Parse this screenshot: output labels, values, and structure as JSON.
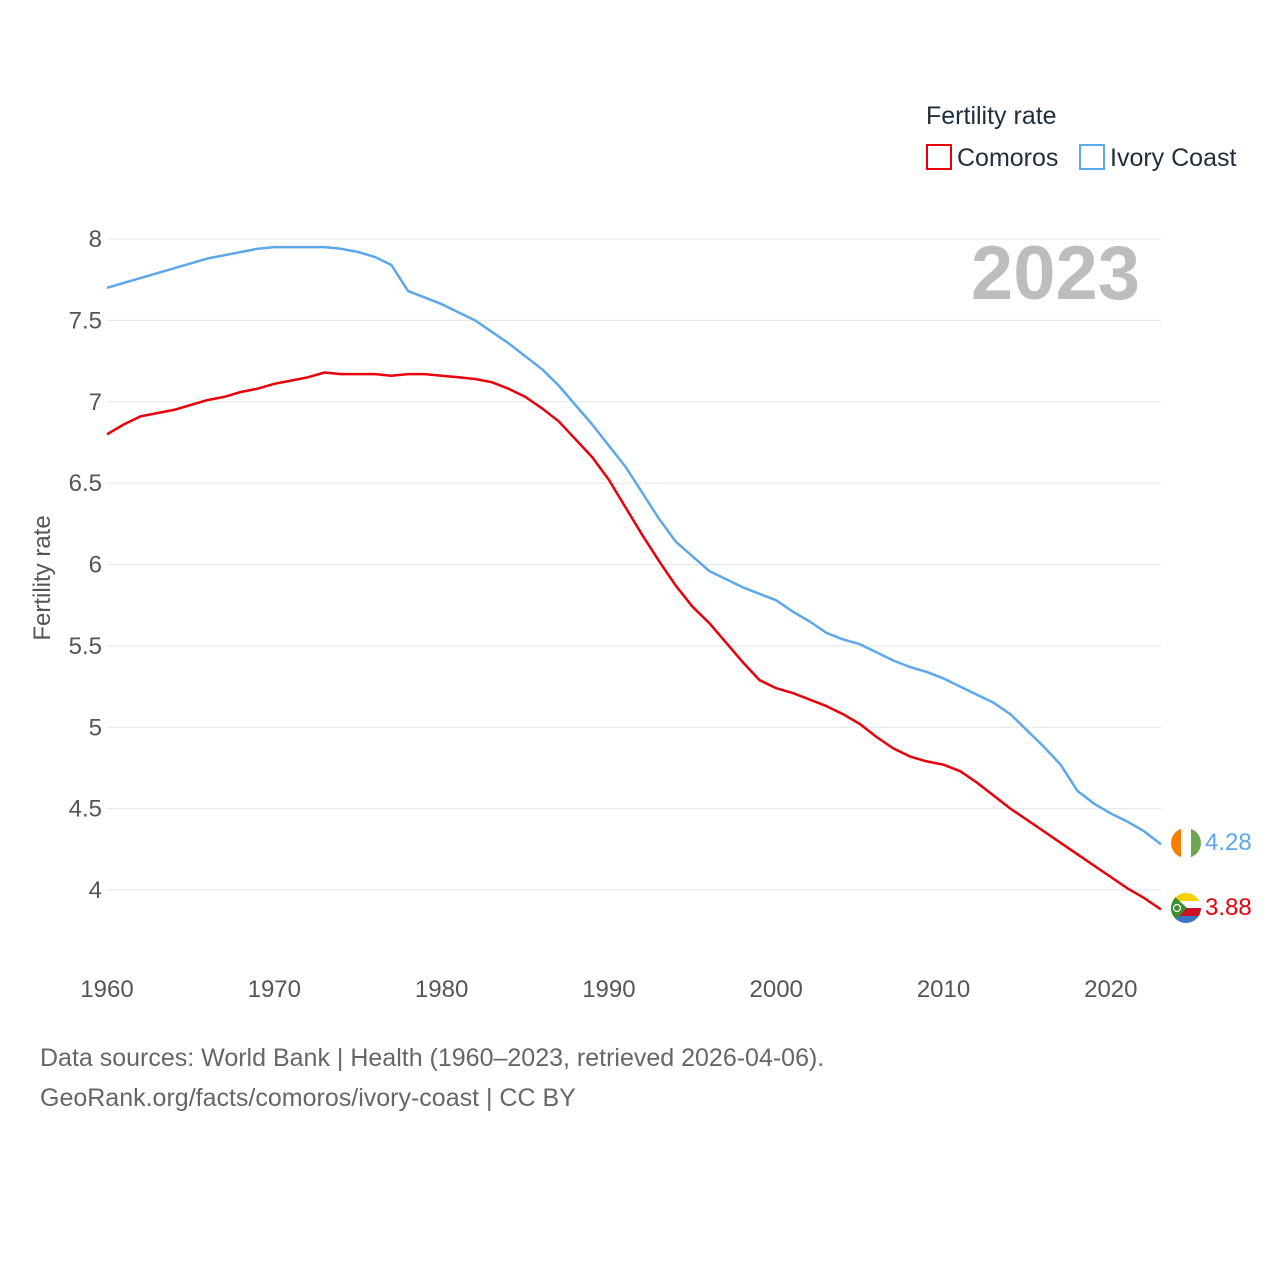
{
  "legend": {
    "title": "Fertility rate",
    "items": [
      {
        "label": "Comoros",
        "color": "#e8000b"
      },
      {
        "label": "Ivory Coast",
        "color": "#5ca8e8"
      }
    ]
  },
  "year_label": "2023",
  "footer": {
    "line1": "Data sources: World Bank | Health (1960–2023, retrieved 2026-04-06).",
    "line2": "GeoRank.org/facts/comoros/ivory-coast | CC BY"
  },
  "chart_data": {
    "type": "line",
    "title": "Fertility rate",
    "xlabel": "",
    "ylabel": "Fertility rate",
    "xlim": [
      1960,
      2023
    ],
    "ylim": [
      4,
      8
    ],
    "grid": true,
    "legend_position": "top-right",
    "x_ticks": [
      "1960",
      "1970",
      "1980",
      "1990",
      "2000",
      "2010",
      "2020"
    ],
    "y_ticks": [
      "4",
      "4.5",
      "5",
      "5.5",
      "6",
      "6.5",
      "7",
      "7.5",
      "8"
    ],
    "x": [
      1960,
      1961,
      1962,
      1963,
      1964,
      1965,
      1966,
      1967,
      1968,
      1969,
      1970,
      1971,
      1972,
      1973,
      1974,
      1975,
      1976,
      1977,
      1978,
      1979,
      1980,
      1981,
      1982,
      1983,
      1984,
      1985,
      1986,
      1987,
      1988,
      1989,
      1990,
      1991,
      1992,
      1993,
      1994,
      1995,
      1996,
      1997,
      1998,
      1999,
      2000,
      2001,
      2002,
      2003,
      2004,
      2005,
      2006,
      2007,
      2008,
      2009,
      2010,
      2011,
      2012,
      2013,
      2014,
      2015,
      2016,
      2017,
      2018,
      2019,
      2020,
      2021,
      2022,
      2023
    ],
    "series": [
      {
        "name": "Comoros",
        "color": "#e8000b",
        "end_label": "3.88",
        "values": [
          6.8,
          6.86,
          6.91,
          6.93,
          6.95,
          6.98,
          7.01,
          7.03,
          7.06,
          7.08,
          7.11,
          7.13,
          7.15,
          7.18,
          7.17,
          7.17,
          7.17,
          7.16,
          7.17,
          7.17,
          7.16,
          7.15,
          7.14,
          7.12,
          7.08,
          7.03,
          6.96,
          6.88,
          6.77,
          6.66,
          6.52,
          6.35,
          6.18,
          6.02,
          5.87,
          5.74,
          5.64,
          5.52,
          5.4,
          5.29,
          5.24,
          5.21,
          5.17,
          5.13,
          5.08,
          5.02,
          4.94,
          4.87,
          4.82,
          4.79,
          4.77,
          4.73,
          4.66,
          4.58,
          4.5,
          4.43,
          4.36,
          4.29,
          4.22,
          4.15,
          4.08,
          4.01,
          3.95,
          3.88
        ]
      },
      {
        "name": "Ivory Coast",
        "color": "#5ca8e8",
        "end_label": "4.28",
        "values": [
          7.7,
          7.73,
          7.76,
          7.79,
          7.82,
          7.85,
          7.88,
          7.9,
          7.92,
          7.94,
          7.95,
          7.95,
          7.95,
          7.95,
          7.94,
          7.92,
          7.89,
          7.84,
          7.68,
          7.64,
          7.6,
          7.55,
          7.5,
          7.43,
          7.36,
          7.28,
          7.2,
          7.1,
          6.98,
          6.86,
          6.73,
          6.6,
          6.44,
          6.28,
          6.14,
          6.05,
          5.96,
          5.91,
          5.86,
          5.82,
          5.78,
          5.71,
          5.65,
          5.58,
          5.54,
          5.51,
          5.46,
          5.41,
          5.37,
          5.34,
          5.3,
          5.25,
          5.2,
          5.15,
          5.08,
          4.98,
          4.88,
          4.77,
          4.61,
          4.53,
          4.47,
          4.42,
          4.36,
          4.28
        ]
      }
    ]
  }
}
